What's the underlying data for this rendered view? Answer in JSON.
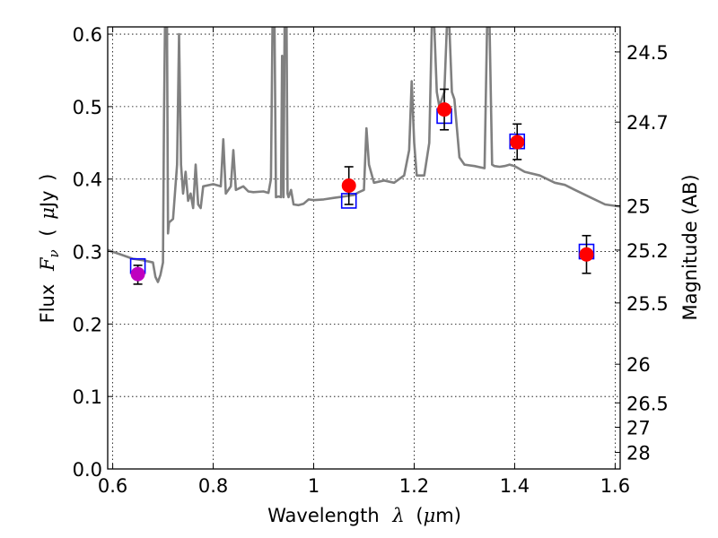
{
  "chart_data": {
    "type": "scatter",
    "xlabel": {
      "prefix": "Wavelength",
      "symbol": "λ",
      "units_open": "(",
      "units_mu": "μ",
      "units_rest": "m)"
    },
    "ylabel": {
      "prefix": "Flux",
      "symbol": "F",
      "subscript": "ν",
      "units_open": "(",
      "units_mu": "μ",
      "units_rest": "Jy",
      "units_close": ")"
    },
    "y2label": "Magnitude (AB)",
    "xlim": [
      0.59,
      1.61
    ],
    "ylim": [
      0.0,
      0.61
    ],
    "x_ticks": [
      {
        "value": 0.6,
        "label": "0.6"
      },
      {
        "value": 0.8,
        "label": "0.8"
      },
      {
        "value": 1.0,
        "label": "1"
      },
      {
        "value": 1.2,
        "label": "1.2"
      },
      {
        "value": 1.4,
        "label": "1.4"
      },
      {
        "value": 1.6,
        "label": "1.6"
      }
    ],
    "y_ticks": [
      {
        "value": 0.0,
        "label": "0.0"
      },
      {
        "value": 0.1,
        "label": "0.1"
      },
      {
        "value": 0.2,
        "label": "0.2"
      },
      {
        "value": 0.3,
        "label": "0.3"
      },
      {
        "value": 0.4,
        "label": "0.4"
      },
      {
        "value": 0.5,
        "label": "0.5"
      },
      {
        "value": 0.6,
        "label": "0.6"
      }
    ],
    "y2_ticks": [
      {
        "value": 24.5,
        "label": "24.5"
      },
      {
        "value": 24.7,
        "label": "24.7"
      },
      {
        "value": 25.0,
        "label": "25"
      },
      {
        "value": 25.2,
        "label": "25.2"
      },
      {
        "value": 25.5,
        "label": "25.5"
      },
      {
        "value": 26.0,
        "label": "26"
      },
      {
        "value": 26.5,
        "label": "26.5"
      },
      {
        "value": 27.0,
        "label": "27"
      },
      {
        "value": 28.0,
        "label": "28"
      }
    ],
    "grid": true,
    "spectrum": {
      "color": "#808080",
      "points": [
        [
          0.59,
          0.302
        ],
        [
          0.62,
          0.295
        ],
        [
          0.64,
          0.29
        ],
        [
          0.66,
          0.288
        ],
        [
          0.68,
          0.285
        ],
        [
          0.685,
          0.265
        ],
        [
          0.69,
          0.258
        ],
        [
          0.695,
          0.268
        ],
        [
          0.7,
          0.285
        ],
        [
          0.702,
          0.48
        ],
        [
          0.704,
          0.61
        ],
        [
          0.708,
          0.61
        ],
        [
          0.71,
          0.325
        ],
        [
          0.712,
          0.34
        ],
        [
          0.72,
          0.345
        ],
        [
          0.728,
          0.42
        ],
        [
          0.732,
          0.6
        ],
        [
          0.736,
          0.42
        ],
        [
          0.74,
          0.38
        ],
        [
          0.745,
          0.41
        ],
        [
          0.75,
          0.37
        ],
        [
          0.755,
          0.38
        ],
        [
          0.76,
          0.36
        ],
        [
          0.765,
          0.42
        ],
        [
          0.77,
          0.365
        ],
        [
          0.775,
          0.36
        ],
        [
          0.78,
          0.39
        ],
        [
          0.8,
          0.393
        ],
        [
          0.815,
          0.39
        ],
        [
          0.82,
          0.455
        ],
        [
          0.825,
          0.38
        ],
        [
          0.835,
          0.39
        ],
        [
          0.84,
          0.44
        ],
        [
          0.845,
          0.385
        ],
        [
          0.86,
          0.39
        ],
        [
          0.87,
          0.383
        ],
        [
          0.88,
          0.382
        ],
        [
          0.9,
          0.383
        ],
        [
          0.91,
          0.381
        ],
        [
          0.915,
          0.4
        ],
        [
          0.918,
          0.61
        ],
        [
          0.922,
          0.61
        ],
        [
          0.925,
          0.375
        ],
        [
          0.93,
          0.376
        ],
        [
          0.935,
          0.375
        ],
        [
          0.937,
          0.57
        ],
        [
          0.94,
          0.375
        ],
        [
          0.942,
          0.61
        ],
        [
          0.946,
          0.61
        ],
        [
          0.948,
          0.38
        ],
        [
          0.95,
          0.375
        ],
        [
          0.955,
          0.385
        ],
        [
          0.96,
          0.365
        ],
        [
          0.97,
          0.364
        ],
        [
          0.98,
          0.366
        ],
        [
          0.99,
          0.372
        ],
        [
          1.0,
          0.371
        ],
        [
          1.02,
          0.372
        ],
        [
          1.04,
          0.374
        ],
        [
          1.06,
          0.376
        ],
        [
          1.08,
          0.378
        ],
        [
          1.09,
          0.382
        ],
        [
          1.1,
          0.385
        ],
        [
          1.105,
          0.47
        ],
        [
          1.11,
          0.42
        ],
        [
          1.12,
          0.395
        ],
        [
          1.14,
          0.398
        ],
        [
          1.16,
          0.395
        ],
        [
          1.18,
          0.405
        ],
        [
          1.19,
          0.44
        ],
        [
          1.195,
          0.535
        ],
        [
          1.2,
          0.45
        ],
        [
          1.205,
          0.405
        ],
        [
          1.22,
          0.405
        ],
        [
          1.23,
          0.45
        ],
        [
          1.235,
          0.61
        ],
        [
          1.24,
          0.61
        ],
        [
          1.245,
          0.52
        ],
        [
          1.25,
          0.5
        ],
        [
          1.26,
          0.52
        ],
        [
          1.265,
          0.61
        ],
        [
          1.27,
          0.61
        ],
        [
          1.275,
          0.52
        ],
        [
          1.28,
          0.51
        ],
        [
          1.29,
          0.43
        ],
        [
          1.3,
          0.42
        ],
        [
          1.32,
          0.418
        ],
        [
          1.34,
          0.415
        ],
        [
          1.345,
          0.61
        ],
        [
          1.35,
          0.61
        ],
        [
          1.355,
          0.42
        ],
        [
          1.36,
          0.418
        ],
        [
          1.37,
          0.417
        ],
        [
          1.38,
          0.418
        ],
        [
          1.39,
          0.42
        ],
        [
          1.4,
          0.418
        ],
        [
          1.42,
          0.41
        ],
        [
          1.45,
          0.405
        ],
        [
          1.48,
          0.395
        ],
        [
          1.5,
          0.392
        ],
        [
          1.52,
          0.385
        ],
        [
          1.55,
          0.375
        ],
        [
          1.58,
          0.365
        ],
        [
          1.61,
          0.362
        ]
      ]
    },
    "model_points": {
      "color": "#0000ff",
      "points": [
        [
          0.65,
          0.28
        ],
        [
          1.07,
          0.37
        ],
        [
          1.26,
          0.487
        ],
        [
          1.405,
          0.452
        ],
        [
          1.543,
          0.3
        ]
      ]
    },
    "observed_points": [
      {
        "x": 0.65,
        "y": 0.269,
        "yerr_low": 0.014,
        "yerr_high": 0.012,
        "color": "#bf00bf"
      },
      {
        "x": 1.07,
        "y": 0.391,
        "yerr_low": 0.026,
        "yerr_high": 0.026,
        "color": "#ff0000"
      },
      {
        "x": 1.26,
        "y": 0.496,
        "yerr_low": 0.028,
        "yerr_high": 0.028,
        "color": "#ff0000"
      },
      {
        "x": 1.405,
        "y": 0.451,
        "yerr_low": 0.024,
        "yerr_high": 0.025,
        "color": "#ff0000"
      },
      {
        "x": 1.543,
        "y": 0.296,
        "yerr_low": 0.026,
        "yerr_high": 0.026,
        "color": "#ff0000"
      }
    ]
  }
}
